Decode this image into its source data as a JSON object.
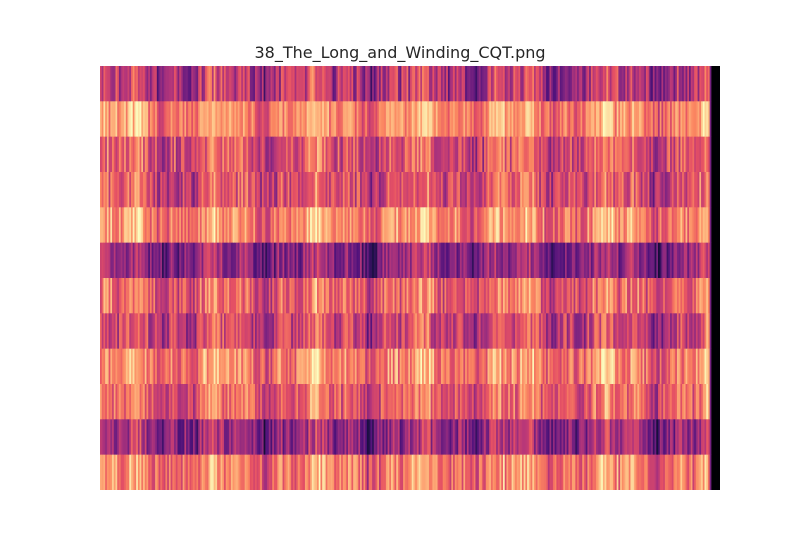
{
  "chart_data": {
    "type": "heatmap",
    "title": "38_The_Long_and_Winding_CQT.png",
    "xlabel": "",
    "ylabel": "",
    "axes_visible": false,
    "grid": false,
    "legend": "none",
    "colormap": "magma",
    "rows": 12,
    "columns": 360,
    "value_range": [
      0,
      1
    ],
    "silent_tail_columns": 6,
    "row_mean_intensity": [
      0.5,
      0.76,
      0.62,
      0.6,
      0.75,
      0.4,
      0.66,
      0.56,
      0.74,
      0.66,
      0.42,
      0.72
    ],
    "row_variation": [
      0.17,
      0.12,
      0.15,
      0.16,
      0.14,
      0.14,
      0.15,
      0.15,
      0.14,
      0.14,
      0.15,
      0.15
    ],
    "colors": {
      "dark": "#3b0f70",
      "mid": "#b5367a",
      "bright": "#fcfdbf",
      "tail": "#000004"
    }
  }
}
